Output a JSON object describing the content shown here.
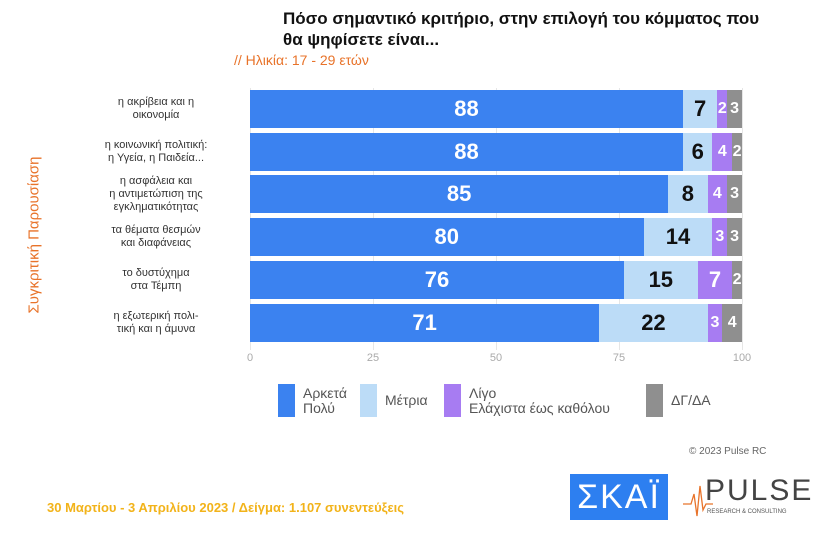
{
  "chart_data": {
    "type": "bar",
    "stacked": true,
    "orientation": "horizontal",
    "title": "Πόσο σημαντικό κριτήριο, στην επιλογή του κόμματος που θα ψηφίσετε είναι...",
    "subtitle": "// Ηλικία: 17 - 29 ετών",
    "ylabel": "Συγκριτική  Παρουσίαση",
    "xlim": [
      0,
      100
    ],
    "xticks": [
      "0",
      "25",
      "50",
      "75",
      "100"
    ],
    "categories": [
      [
        "η ακρίβεια και η",
        "οικονομία"
      ],
      [
        "η κοινωνική πολιτική:",
        "η Υγεία, η Παιδεία..."
      ],
      [
        "η ασφάλεια και",
        "η αντιμετώπιση της",
        "εγκληματικότητας"
      ],
      [
        "τα θέματα θεσμών",
        "και διαφάνειας"
      ],
      [
        "το δυστύχημα",
        "στα Τέμπη"
      ],
      [
        "η εξωτερική πολι-",
        "τική και η άμυνα"
      ]
    ],
    "series": [
      {
        "name": "Αρκετά Πολύ",
        "legend": [
          "Αρκετά",
          "Πολύ"
        ],
        "color": "#3b82f0",
        "text": "#ffffff",
        "values": [
          88,
          88,
          85,
          80,
          76,
          71
        ]
      },
      {
        "name": "Μέτρια",
        "legend": [
          "Μέτρια"
        ],
        "color": "#bcdcf7",
        "text": "#111111",
        "values": [
          7,
          6,
          8,
          14,
          15,
          22
        ]
      },
      {
        "name": "Λίγο Ελάχιστα έως καθόλου",
        "legend": [
          "Λίγο",
          "Ελάχιστα έως καθόλου"
        ],
        "color": "#a77cf2",
        "text": "#ffffff",
        "values": [
          2,
          4,
          4,
          3,
          7,
          3
        ]
      },
      {
        "name": "ΔΓ/ΔΑ",
        "legend": [
          "ΔΓ/ΔΑ"
        ],
        "color": "#8f8f8f",
        "text": "#ffffff",
        "values": [
          3,
          2,
          3,
          3,
          2,
          4
        ]
      }
    ]
  },
  "footer": "30 Μαρτίου - 3  Απριλίου  2023  /  Δείγμα:  1.107 συνεντεύξεις",
  "copyright": "© 2023 Pulse RC",
  "logos": {
    "skai": "ΣΚΑΪ",
    "pulse": "PULSE",
    "pulse_sub": "RESEARCH & CONSULTING"
  }
}
